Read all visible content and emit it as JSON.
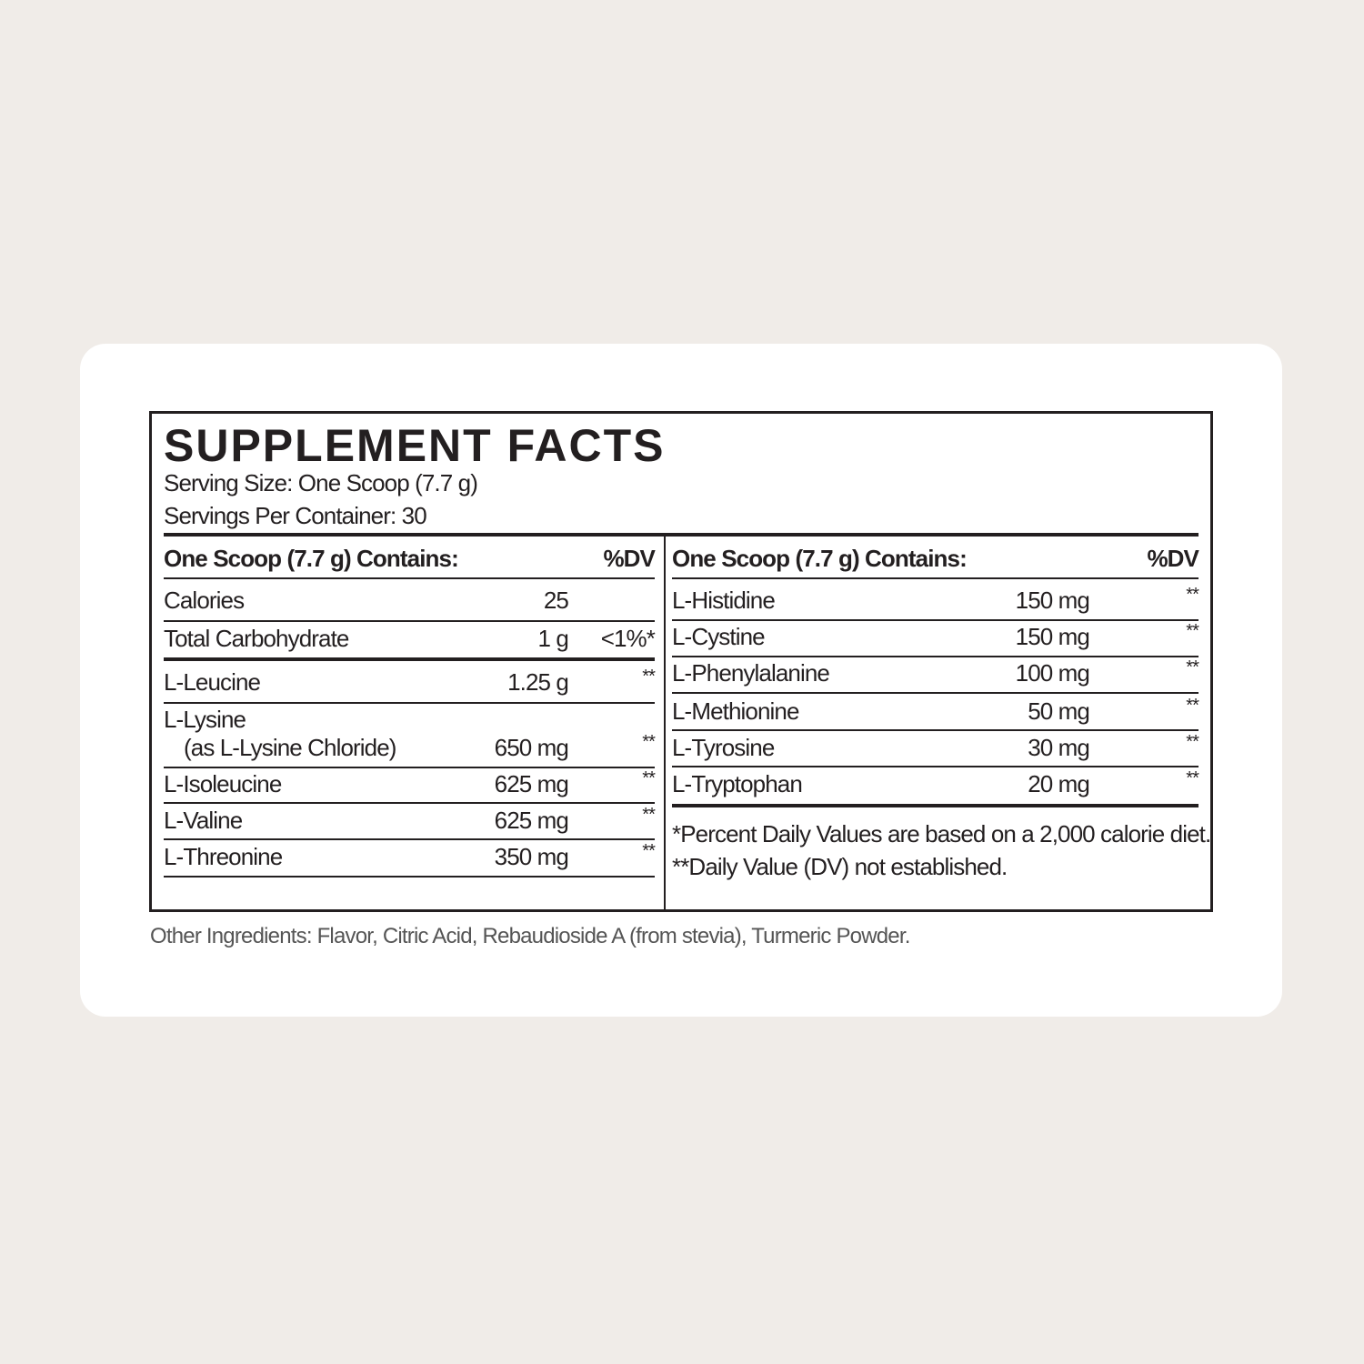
{
  "title": "SUPPLEMENT FACTS",
  "serving_size": "Serving Size: One Scoop (7.7 g)",
  "servings_per_container": "Servings Per Container: 30",
  "columns": [
    {
      "header": {
        "label": "One Scoop (7.7 g) Contains:",
        "dv": "%DV"
      },
      "rows": [
        {
          "name": "Calories",
          "amount": "25"
        },
        {
          "name": "Total Carbohydrate",
          "amount": "1 g",
          "dv": "<1%*"
        },
        {
          "name": "L-Leucine",
          "amount": "1.25 g",
          "dv": "**"
        },
        {
          "name": "L-Lysine",
          "note": "(as L-Lysine Chloride)",
          "amount": "650 mg",
          "dv": "**"
        },
        {
          "name": "L-Isoleucine",
          "amount": "625 mg",
          "dv": "**"
        },
        {
          "name": "L-Valine",
          "amount": "625 mg",
          "dv": "**"
        },
        {
          "name": "L-Threonine",
          "amount": "350 mg",
          "dv": "**"
        }
      ]
    },
    {
      "header": {
        "label": "One Scoop (7.7 g) Contains:",
        "dv": "%DV"
      },
      "rows": [
        {
          "name": "L-Histidine",
          "amount": "150 mg",
          "dv": "**"
        },
        {
          "name": "L-Cystine",
          "amount": "150 mg",
          "dv": "**"
        },
        {
          "name": "L-Phenylalanine",
          "amount": "100 mg",
          "dv": "**"
        },
        {
          "name": "L-Methionine",
          "amount": "50 mg",
          "dv": "**"
        },
        {
          "name": "L-Tyrosine",
          "amount": "30 mg",
          "dv": "**"
        },
        {
          "name": "L-Tryptophan",
          "amount": "20 mg",
          "dv": "**"
        }
      ],
      "footnotes": [
        "*Percent Daily Values are based on a 2,000 calorie diet.",
        "**Daily Value (DV) not established."
      ]
    }
  ],
  "other_ingredients": "Other Ingredients: Flavor, Citric Acid, Rebaudioside A (from stevia), Turmeric Powder."
}
